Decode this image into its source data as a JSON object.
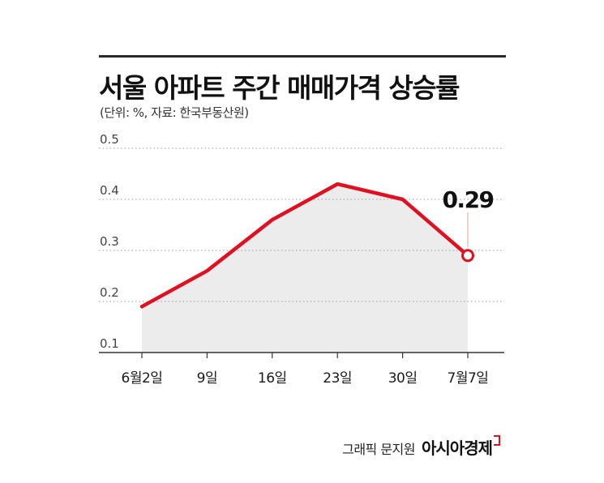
{
  "chart_data": {
    "type": "line",
    "title": "서울 아파트 주간 매매가격 상승률",
    "subtitle": "(단위: %, 자료: 한국부동산원)",
    "categories": [
      "6월2일",
      "9일",
      "16일",
      "23일",
      "30일",
      "7월7일"
    ],
    "values": [
      0.19,
      0.26,
      0.36,
      0.43,
      0.4,
      0.29
    ],
    "y_ticks": [
      "0.1",
      "0.2",
      "0.3",
      "0.4",
      "0.5"
    ],
    "ylim": [
      0.1,
      0.5
    ],
    "highlight": {
      "index": 5,
      "label": "0.29"
    },
    "line_color": "#e01020",
    "area_color": "#ececec"
  },
  "credit": {
    "text": "그래픽 문지원",
    "brand": "아시아경제"
  }
}
